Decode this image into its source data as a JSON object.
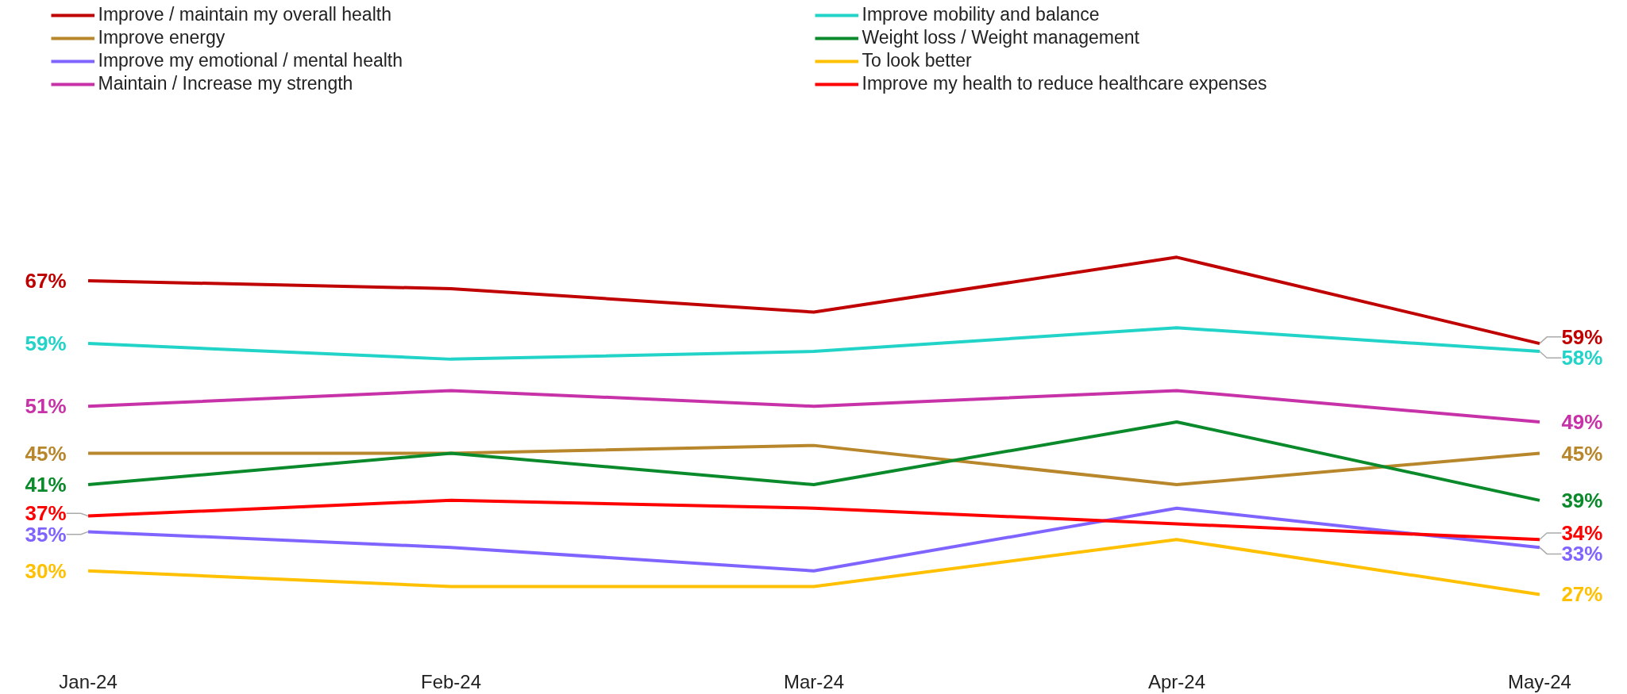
{
  "chart_data": {
    "type": "line",
    "categories": [
      "Jan-24",
      "Feb-24",
      "Mar-24",
      "Apr-24",
      "May-24"
    ],
    "legend": "top",
    "grid": false,
    "series": [
      {
        "name": "Improve / maintain my overall health",
        "color": "#c00000",
        "values": [
          67,
          66,
          63,
          70,
          59
        ],
        "value_labels": [
          "67%",
          null,
          null,
          null,
          "59%"
        ]
      },
      {
        "name": "Improve mobility and balance",
        "color": "#22d3c8",
        "values": [
          59,
          57,
          58,
          61,
          58
        ],
        "value_labels": [
          "59%",
          null,
          null,
          null,
          "58%"
        ]
      },
      {
        "name": "Improve energy",
        "color": "#b8862b",
        "values": [
          45,
          45,
          46,
          41,
          45
        ],
        "value_labels": [
          "45%",
          null,
          null,
          null,
          "45%"
        ]
      },
      {
        "name": "Weight loss / Weight management",
        "color": "#0a8a2a",
        "values": [
          41,
          45,
          41,
          49,
          39
        ],
        "value_labels": [
          "41%",
          null,
          null,
          null,
          "39%"
        ]
      },
      {
        "name": "Improve my emotional / mental health",
        "color": "#8064ff",
        "values": [
          35,
          33,
          30,
          38,
          33
        ],
        "value_labels": [
          "35%",
          null,
          null,
          null,
          "33%"
        ]
      },
      {
        "name": "To look better",
        "color": "#ffc000",
        "values": [
          30,
          28,
          28,
          34,
          27
        ],
        "value_labels": [
          "30%",
          null,
          null,
          null,
          "27%"
        ]
      },
      {
        "name": "Maintain / Increase my strength",
        "color": "#c832a8",
        "values": [
          51,
          53,
          51,
          53,
          49
        ],
        "value_labels": [
          "51%",
          null,
          null,
          null,
          "49%"
        ]
      },
      {
        "name": "Improve my health to reduce healthcare expenses",
        "color": "#ff0000",
        "values": [
          37,
          39,
          38,
          36,
          34
        ],
        "value_labels": [
          "37%",
          null,
          null,
          null,
          "34%"
        ]
      }
    ]
  }
}
